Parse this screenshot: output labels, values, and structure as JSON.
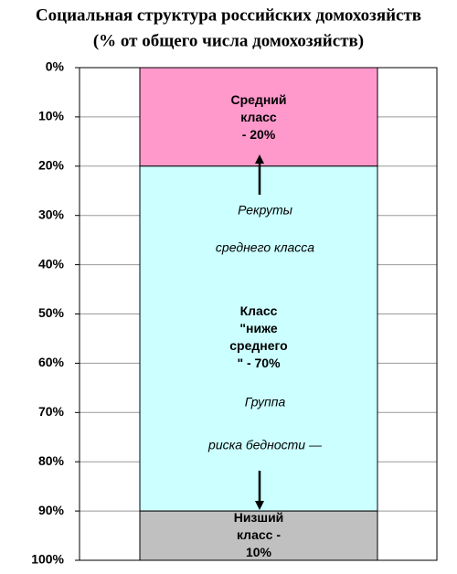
{
  "chart_data": {
    "type": "bar",
    "stacked": true,
    "inverted": true,
    "title": "Социальная структура российских домохозяйств",
    "subtitle": "(% от общего числа домохозяйств)",
    "series": [
      {
        "color": "#ff99cc",
        "values": [
          20
        ],
        "value_labels": [
          "Средний\nкласс\n- 20%"
        ]
      },
      {
        "color": "#ccffff",
        "values": [
          70
        ],
        "value_labels": [
          "Класс\n\"ниже\nсреднего\n\" - 70%"
        ]
      },
      {
        "color": "#c0c0c0",
        "values": [
          10
        ],
        "value_labels": [
          "Низший\nкласс -\n10%"
        ]
      }
    ],
    "annotations": [
      "Рекруты",
      "среднего класса",
      "Группа",
      "риска бедности —"
    ],
    "ylim": [
      0,
      100
    ],
    "yticks": [
      {
        "value": 0,
        "label": "0%"
      },
      {
        "value": 10,
        "label": "10%"
      },
      {
        "value": 20,
        "label": "20%"
      },
      {
        "value": 30,
        "label": "30%"
      },
      {
        "value": 40,
        "label": "40%"
      },
      {
        "value": 50,
        "label": "50%"
      },
      {
        "value": 60,
        "label": "60%"
      },
      {
        "value": 70,
        "label": "70%"
      },
      {
        "value": 80,
        "label": "80%"
      },
      {
        "value": 90,
        "label": "90%"
      },
      {
        "value": 100,
        "label": "100%"
      }
    ],
    "grid": true
  }
}
